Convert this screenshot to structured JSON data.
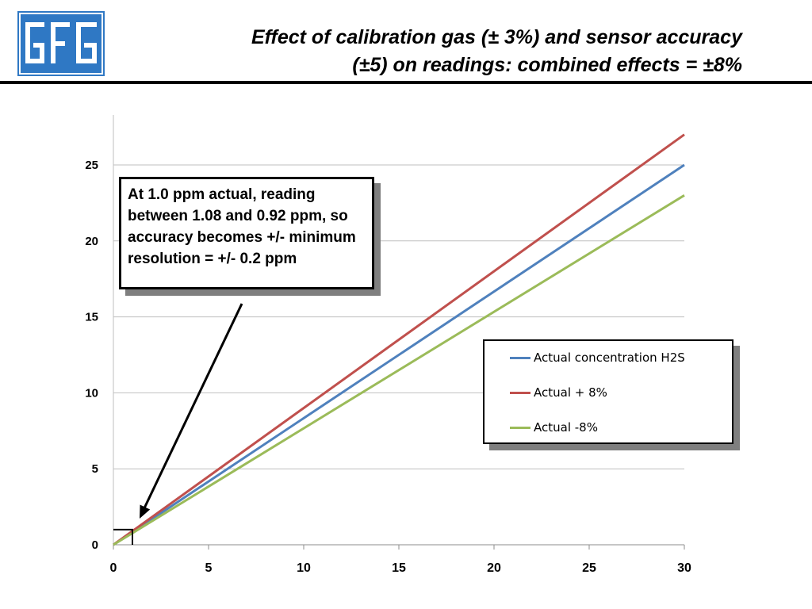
{
  "slide": {
    "title_line1": "Effect of calibration gas (± 3%) and sensor accuracy",
    "title_line2": "(±5) on readings:  combined effects = ±8%",
    "logo_text": "GfG"
  },
  "callout": {
    "text": "At 1.0 ppm actual, reading between 1.08 and 0.92 ppm, so accuracy becomes +/- minimum resolution = +/- 0.2 ppm"
  },
  "chart_data": {
    "type": "line",
    "title": "",
    "xlabel": "",
    "ylabel": "",
    "xlim": [
      0,
      30
    ],
    "ylim": [
      0,
      27
    ],
    "xticks": [
      0,
      5,
      10,
      15,
      20,
      25,
      30
    ],
    "yticks": [
      0,
      5,
      10,
      15,
      20,
      25
    ],
    "grid": "horizontal",
    "legend_position": "right",
    "series": [
      {
        "name": "Actual concentration H2S",
        "color": "#4f81bd",
        "x": [
          0,
          30
        ],
        "y": [
          0,
          25
        ]
      },
      {
        "name": "Actual + 8%",
        "color": "#c0504d",
        "x": [
          0,
          30
        ],
        "y": [
          0,
          27
        ]
      },
      {
        "name": "Actual -8%",
        "color": "#9bbb59",
        "x": [
          0,
          30
        ],
        "y": [
          0,
          23
        ]
      }
    ],
    "annotation": {
      "x": 1,
      "y": 1
    }
  }
}
